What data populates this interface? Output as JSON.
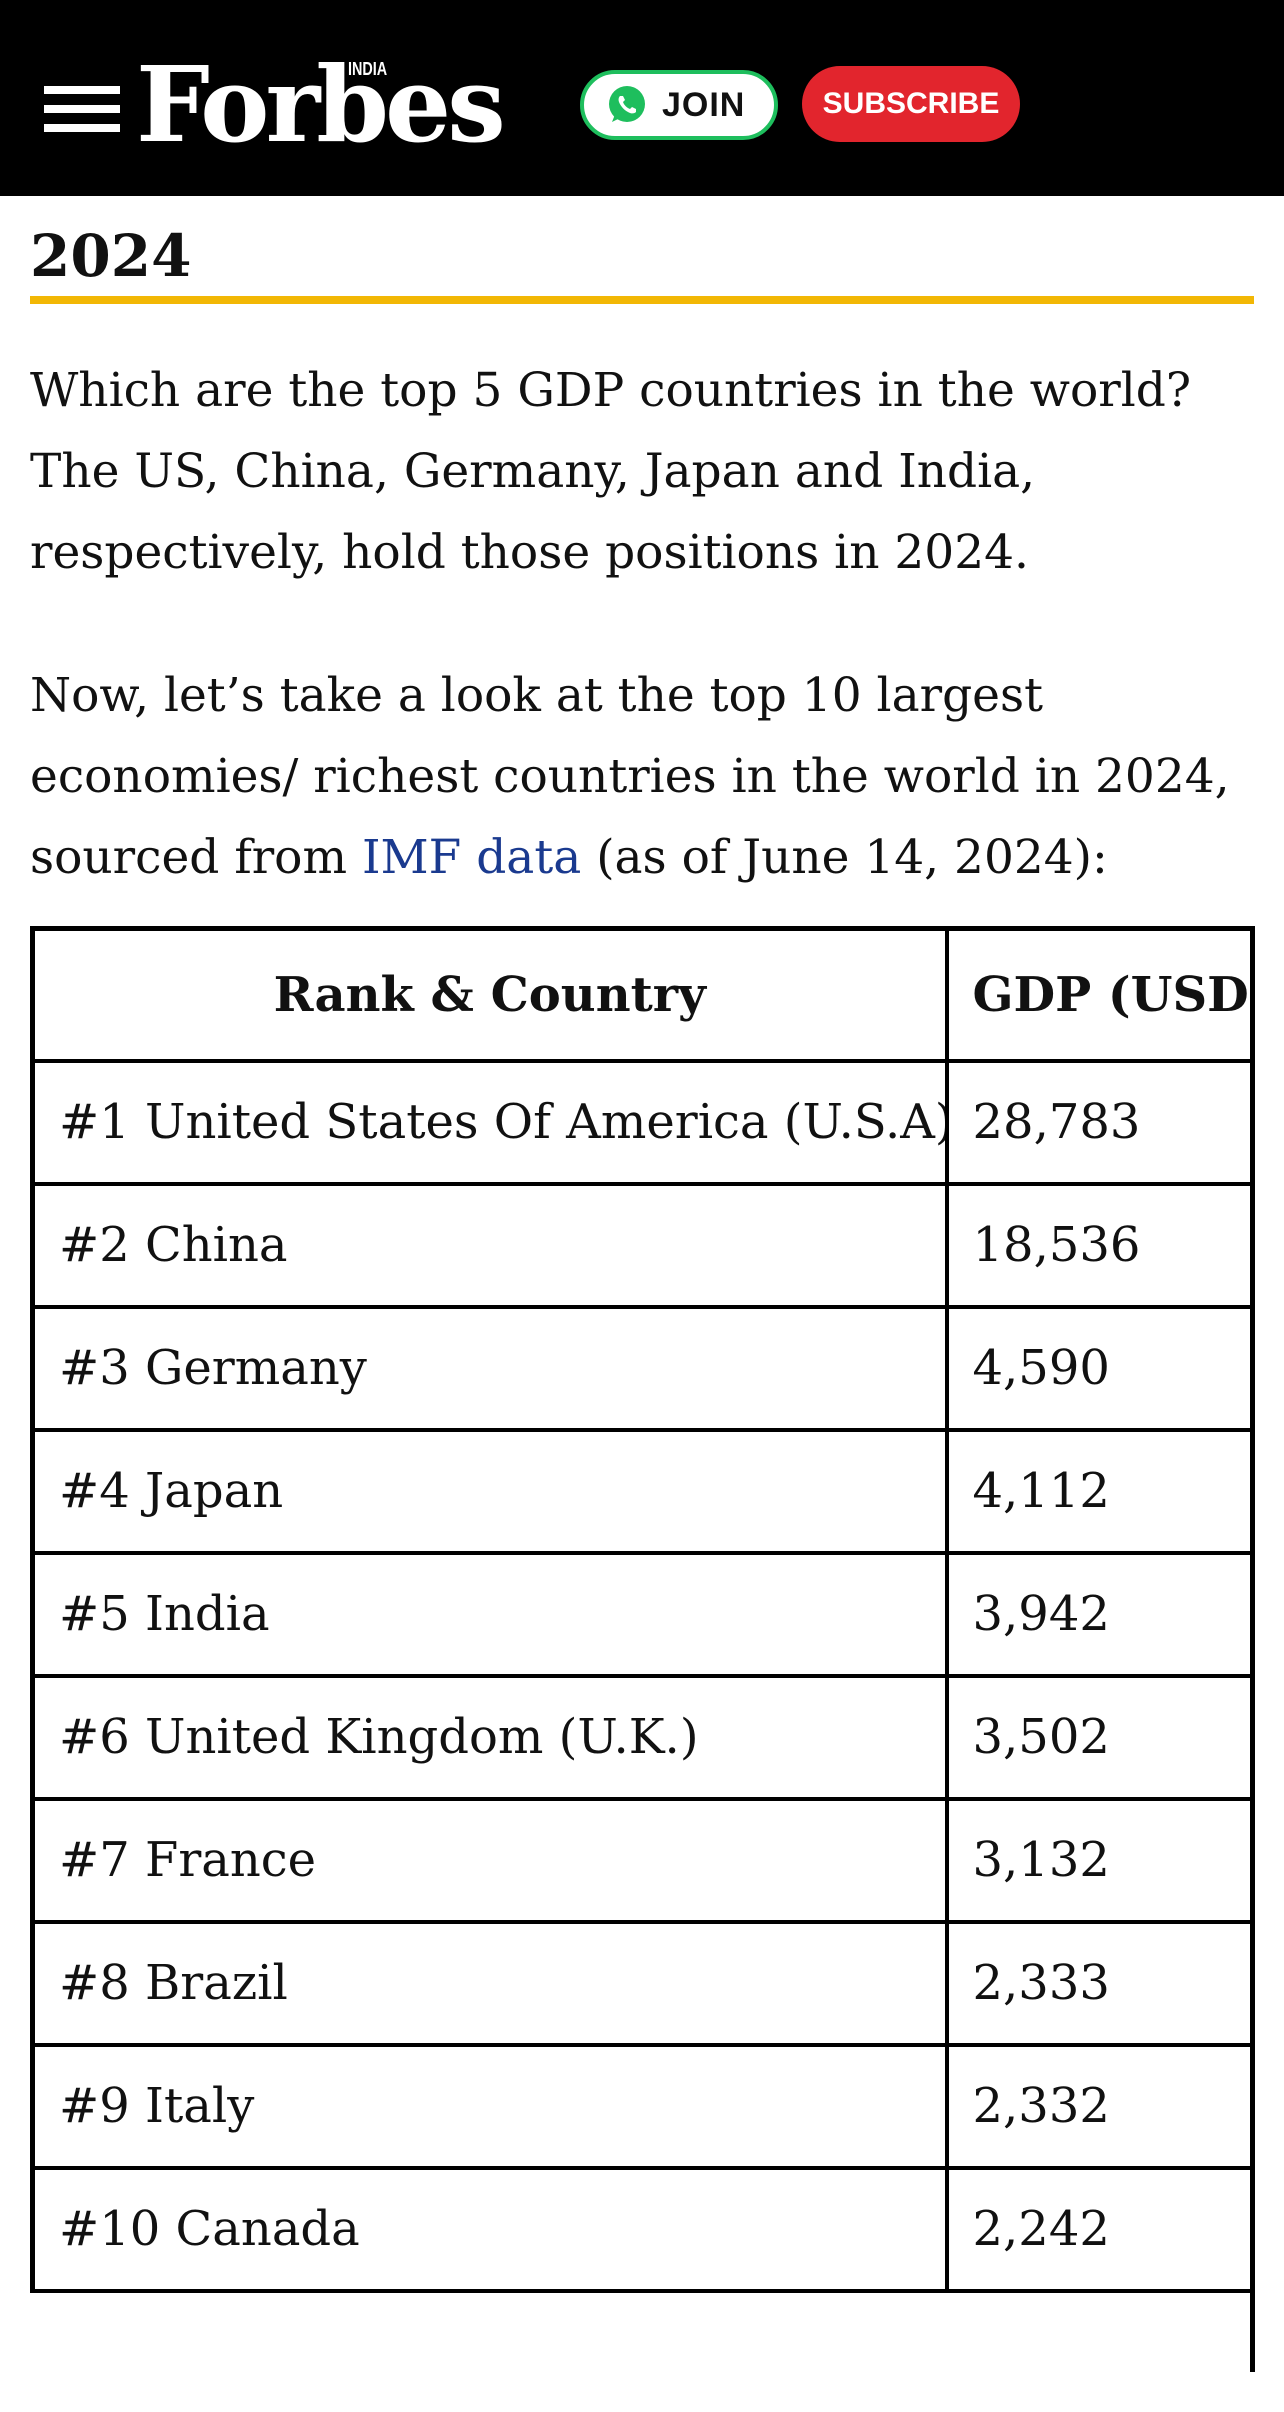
{
  "header": {
    "logo_text": "Forbes",
    "logo_edition": "INDIA",
    "join_label": "JOIN",
    "subscribe_label": "SUBSCRIBE",
    "colors": {
      "bar": "#000000",
      "join_border": "#1ebe5d",
      "subscribe_bg": "#e2252d"
    }
  },
  "article": {
    "heading_visible": "2024",
    "accent_color": "#f2b705",
    "para1": "Which are the top 5 GDP countries in the world? The US, China, Germany, Japan and India, respectively, hold those positions in 2024.",
    "para2_before_link": "Now, let’s take a look at the top 10 largest economies/ richest countries in the world in 2024, sourced from ",
    "para2_link": "IMF data",
    "para2_after_link": " (as of June 14, 2024):"
  },
  "table": {
    "headers": [
      "Rank & Country",
      "GDP (USD"
    ],
    "rows": [
      {
        "country": "#1 United States Of America (U.S.A)",
        "gdp": "28,783"
      },
      {
        "country": "#2 China",
        "gdp": "18,536"
      },
      {
        "country": "#3 Germany",
        "gdp": "4,590"
      },
      {
        "country": "#4 Japan",
        "gdp": "4,112"
      },
      {
        "country": "#5 India",
        "gdp": "3,942"
      },
      {
        "country": "#6 United Kingdom (U.K.)",
        "gdp": "3,502"
      },
      {
        "country": "#7 France",
        "gdp": "3,132"
      },
      {
        "country": "#8 Brazil",
        "gdp": "2,333"
      },
      {
        "country": "#9 Italy",
        "gdp": "2,332"
      },
      {
        "country": "#10 Canada",
        "gdp": "2,242"
      }
    ]
  }
}
